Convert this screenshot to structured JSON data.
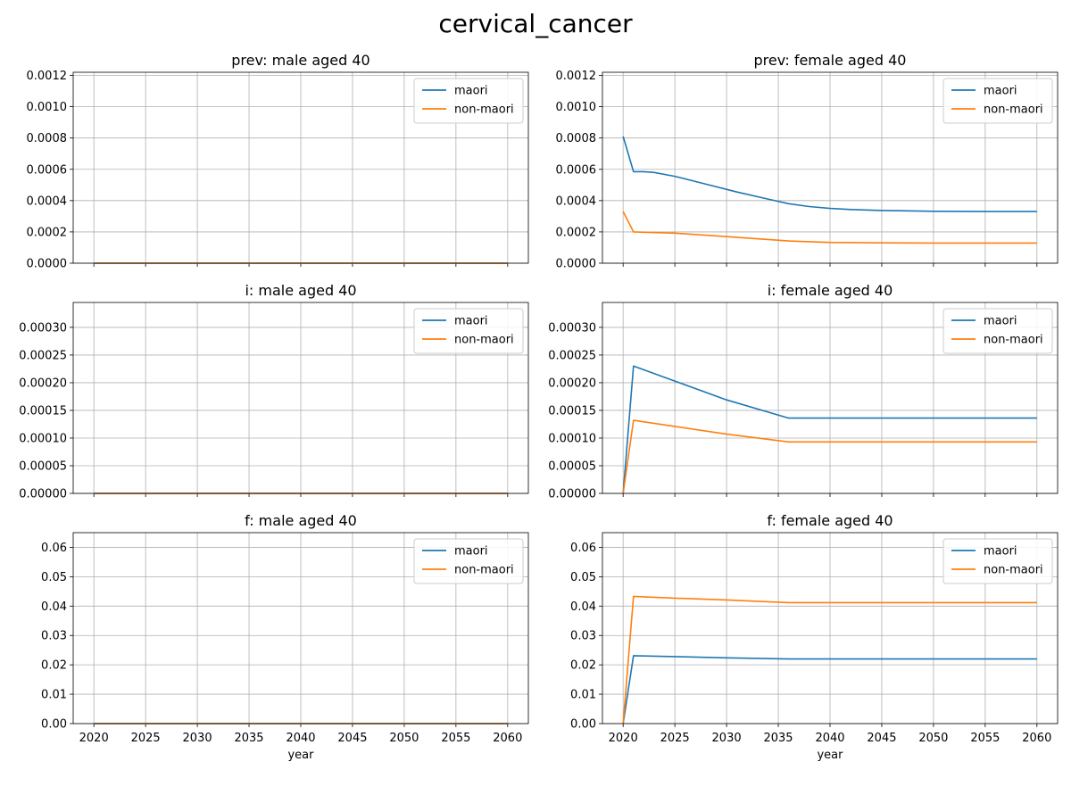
{
  "figure": {
    "title": "cervical_cancer",
    "xlabel": "year"
  },
  "colors": {
    "maori": "#1f77b4",
    "non-maori": "#ff7f0e",
    "grid": "#b0b0b0"
  },
  "chart_data": [
    {
      "type": "line",
      "title": "prev: male aged 40",
      "xlabel": "",
      "ylim": [
        0,
        0.00122
      ],
      "yticks": [
        "0.0000",
        "0.0002",
        "0.0004",
        "0.0006",
        "0.0008",
        "0.0010",
        "0.0012"
      ],
      "ytick_values": [
        0,
        0.0002,
        0.0004,
        0.0006,
        0.0008,
        0.001,
        0.0012
      ],
      "xticks": [
        2020,
        2025,
        2030,
        2035,
        2040,
        2045,
        2050,
        2055,
        2060
      ],
      "xlim": [
        2018,
        2062
      ],
      "grid": true,
      "legend": "top-right",
      "series": [
        {
          "name": "maori",
          "color": "#1f77b4",
          "x": [
            2020,
            2060
          ],
          "y": [
            0,
            0
          ]
        },
        {
          "name": "non-maori",
          "color": "#ff7f0e",
          "x": [
            2020,
            2060
          ],
          "y": [
            0,
            0
          ]
        }
      ]
    },
    {
      "type": "line",
      "title": "prev: female aged 40",
      "xlabel": "",
      "ylim": [
        0,
        0.00122
      ],
      "yticks": [
        "0.0000",
        "0.0002",
        "0.0004",
        "0.0006",
        "0.0008",
        "0.0010",
        "0.0012"
      ],
      "ytick_values": [
        0,
        0.0002,
        0.0004,
        0.0006,
        0.0008,
        0.001,
        0.0012
      ],
      "xticks": [
        2020,
        2025,
        2030,
        2035,
        2040,
        2045,
        2050,
        2055,
        2060
      ],
      "xlim": [
        2018,
        2062
      ],
      "grid": true,
      "legend": "top-right",
      "series": [
        {
          "name": "maori",
          "color": "#1f77b4",
          "x": [
            2020,
            2021,
            2022,
            2023,
            2025,
            2028,
            2031,
            2034,
            2036,
            2038,
            2040,
            2042,
            2045,
            2050,
            2055,
            2060
          ],
          "y": [
            0.00081,
            0.000585,
            0.000585,
            0.00058,
            0.000555,
            0.000505,
            0.000455,
            0.00041,
            0.00038,
            0.000362,
            0.00035,
            0.000343,
            0.000337,
            0.000332,
            0.00033,
            0.00033
          ]
        },
        {
          "name": "non-maori",
          "color": "#ff7f0e",
          "x": [
            2020,
            2021,
            2025,
            2030,
            2036,
            2040,
            2045,
            2050,
            2060
          ],
          "y": [
            0.00033,
            0.0002,
            0.000192,
            0.00017,
            0.000142,
            0.000133,
            0.00013,
            0.000129,
            0.000129
          ]
        }
      ]
    },
    {
      "type": "line",
      "title": "i: male aged 40",
      "xlabel": "",
      "ylim": [
        0,
        0.000345
      ],
      "yticks": [
        "0.00000",
        "0.00005",
        "0.00010",
        "0.00015",
        "0.00020",
        "0.00025",
        "0.00030"
      ],
      "ytick_values": [
        0,
        5e-05,
        0.0001,
        0.00015,
        0.0002,
        0.00025,
        0.0003
      ],
      "xticks": [
        2020,
        2025,
        2030,
        2035,
        2040,
        2045,
        2050,
        2055,
        2060
      ],
      "xlim": [
        2018,
        2062
      ],
      "grid": true,
      "legend": "top-right",
      "series": [
        {
          "name": "maori",
          "color": "#1f77b4",
          "x": [
            2020,
            2060
          ],
          "y": [
            0,
            0
          ]
        },
        {
          "name": "non-maori",
          "color": "#ff7f0e",
          "x": [
            2020,
            2060
          ],
          "y": [
            0,
            0
          ]
        }
      ]
    },
    {
      "type": "line",
      "title": "i: female aged 40",
      "xlabel": "",
      "ylim": [
        0,
        0.000345
      ],
      "yticks": [
        "0.00000",
        "0.00005",
        "0.00010",
        "0.00015",
        "0.00020",
        "0.00025",
        "0.00030"
      ],
      "ytick_values": [
        0,
        5e-05,
        0.0001,
        0.00015,
        0.0002,
        0.00025,
        0.0003
      ],
      "xticks": [
        2020,
        2025,
        2030,
        2035,
        2040,
        2045,
        2050,
        2055,
        2060
      ],
      "xlim": [
        2018,
        2062
      ],
      "grid": true,
      "legend": "top-right",
      "series": [
        {
          "name": "maori",
          "color": "#1f77b4",
          "x": [
            2020,
            2021,
            2025,
            2030,
            2036,
            2040,
            2050,
            2060
          ],
          "y": [
            0,
            0.00023,
            0.000203,
            0.000169,
            0.000136,
            0.000136,
            0.000136,
            0.000136
          ]
        },
        {
          "name": "non-maori",
          "color": "#ff7f0e",
          "x": [
            2020,
            2021,
            2025,
            2030,
            2036,
            2040,
            2050,
            2060
          ],
          "y": [
            0,
            0.000132,
            0.000121,
            0.000107,
            9.3e-05,
            9.3e-05,
            9.3e-05,
            9.3e-05
          ]
        }
      ]
    },
    {
      "type": "line",
      "title": "f: male aged 40",
      "xlabel": "year",
      "ylim": [
        0,
        0.065
      ],
      "yticks": [
        "0.00",
        "0.01",
        "0.02",
        "0.03",
        "0.04",
        "0.05",
        "0.06"
      ],
      "ytick_values": [
        0,
        0.01,
        0.02,
        0.03,
        0.04,
        0.05,
        0.06
      ],
      "xticks": [
        2020,
        2025,
        2030,
        2035,
        2040,
        2045,
        2050,
        2055,
        2060
      ],
      "xlim": [
        2018,
        2062
      ],
      "grid": true,
      "legend": "top-right",
      "series": [
        {
          "name": "maori",
          "color": "#1f77b4",
          "x": [
            2020,
            2060
          ],
          "y": [
            0,
            0
          ]
        },
        {
          "name": "non-maori",
          "color": "#ff7f0e",
          "x": [
            2020,
            2060
          ],
          "y": [
            0,
            0
          ]
        }
      ]
    },
    {
      "type": "line",
      "title": "f: female aged 40",
      "xlabel": "year",
      "ylim": [
        0,
        0.065
      ],
      "yticks": [
        "0.00",
        "0.01",
        "0.02",
        "0.03",
        "0.04",
        "0.05",
        "0.06"
      ],
      "ytick_values": [
        0,
        0.01,
        0.02,
        0.03,
        0.04,
        0.05,
        0.06
      ],
      "xticks": [
        2020,
        2025,
        2030,
        2035,
        2040,
        2045,
        2050,
        2055,
        2060
      ],
      "xlim": [
        2018,
        2062
      ],
      "grid": true,
      "legend": "top-right",
      "series": [
        {
          "name": "maori",
          "color": "#1f77b4",
          "x": [
            2020,
            2021,
            2025,
            2030,
            2036,
            2040,
            2050,
            2060
          ],
          "y": [
            0,
            0.0231,
            0.0228,
            0.0224,
            0.022,
            0.022,
            0.022,
            0.022
          ]
        },
        {
          "name": "non-maori",
          "color": "#ff7f0e",
          "x": [
            2020,
            2021,
            2025,
            2030,
            2036,
            2040,
            2050,
            2060
          ],
          "y": [
            0,
            0.0433,
            0.0427,
            0.0421,
            0.0412,
            0.0412,
            0.0412,
            0.0412
          ]
        }
      ]
    }
  ]
}
